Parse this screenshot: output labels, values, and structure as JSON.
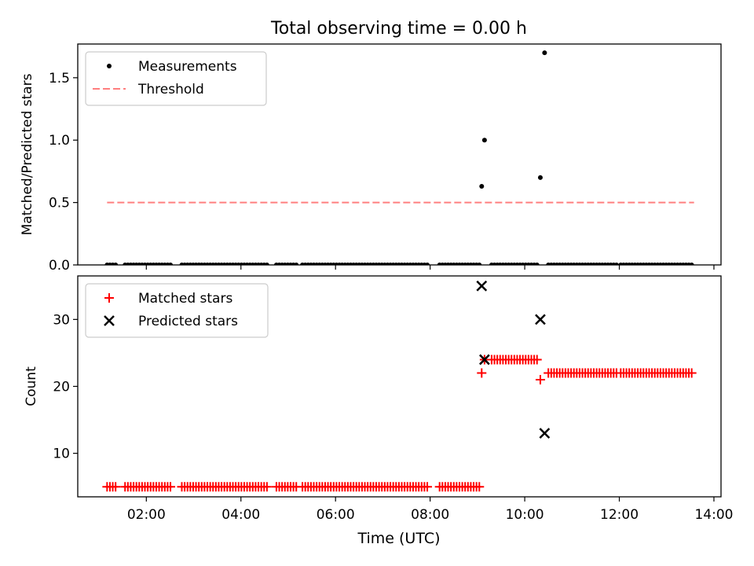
{
  "chart_data": {
    "title": "Total observing time = 0.00 h",
    "xlabel": "Time (UTC)",
    "x_unit": "hours UTC",
    "xlim": [
      0.55,
      14.15
    ],
    "x_ticks": [
      2,
      4,
      6,
      8,
      10,
      12,
      14
    ],
    "x_tick_labels": [
      "02:00",
      "04:00",
      "06:00",
      "08:00",
      "10:00",
      "12:00",
      "14:00"
    ],
    "panels": [
      {
        "type": "scatter",
        "ylabel": "Matched/Predicted stars",
        "ylim": [
          0,
          1.77
        ],
        "y_ticks": [
          0,
          0.5,
          1.0,
          1.5
        ],
        "y_tick_labels": [
          "0.0",
          "0.5",
          "1.0",
          "1.5"
        ],
        "legend_position": "upper-left",
        "legend": [
          "Measurements",
          "Threshold"
        ],
        "colors": {
          "Measurements": "#000000",
          "Threshold": "#ff7f7f"
        },
        "threshold": {
          "name": "Threshold",
          "y": 0.5,
          "x_range": [
            1.17,
            13.58
          ],
          "style": "dashed"
        },
        "measurement_ratio_points": [
          [
            9.09,
            0.63
          ],
          [
            9.15,
            1.0
          ],
          [
            10.33,
            0.7
          ],
          [
            10.42,
            1.7
          ]
        ],
        "zero_ratio_ranges": [
          [
            1.17,
            1.38
          ],
          [
            1.55,
            2.55
          ],
          [
            2.75,
            4.55
          ],
          [
            4.75,
            5.2
          ],
          [
            5.3,
            7.95
          ],
          [
            8.2,
            9.05
          ],
          [
            9.3,
            10.3
          ],
          [
            10.5,
            11.97
          ],
          [
            12.03,
            13.58
          ]
        ],
        "zero_ratio_step": 0.06
      },
      {
        "type": "scatter",
        "ylabel": "Count",
        "ylim": [
          3.5,
          36.5
        ],
        "y_ticks": [
          10,
          20,
          30
        ],
        "y_tick_labels": [
          "10",
          "20",
          "30"
        ],
        "legend_position": "upper-left",
        "legend": [
          "Matched stars",
          "Predicted stars"
        ],
        "colors": {
          "Matched stars": "#ff0000",
          "Predicted stars": "#000000"
        },
        "matched_runs": [
          {
            "y": 5,
            "x_ranges": [
              [
                1.17,
                1.38
              ],
              [
                1.55,
                2.55
              ],
              [
                2.75,
                4.55
              ],
              [
                4.75,
                5.2
              ],
              [
                5.3,
                7.95
              ],
              [
                8.2,
                9.05
              ]
            ]
          },
          {
            "y": 24,
            "x_ranges": [
              [
                9.3,
                10.3
              ]
            ]
          },
          {
            "y": 22,
            "x_ranges": [
              [
                10.5,
                11.97
              ],
              [
                12.03,
                13.58
              ]
            ]
          }
        ],
        "matched_step": 0.06,
        "matched_points": [
          [
            9.09,
            22
          ],
          [
            9.15,
            24
          ],
          [
            10.33,
            21
          ]
        ],
        "predicted_points": [
          [
            9.09,
            35
          ],
          [
            9.15,
            24
          ],
          [
            10.33,
            30
          ],
          [
            10.42,
            13
          ]
        ]
      }
    ]
  }
}
